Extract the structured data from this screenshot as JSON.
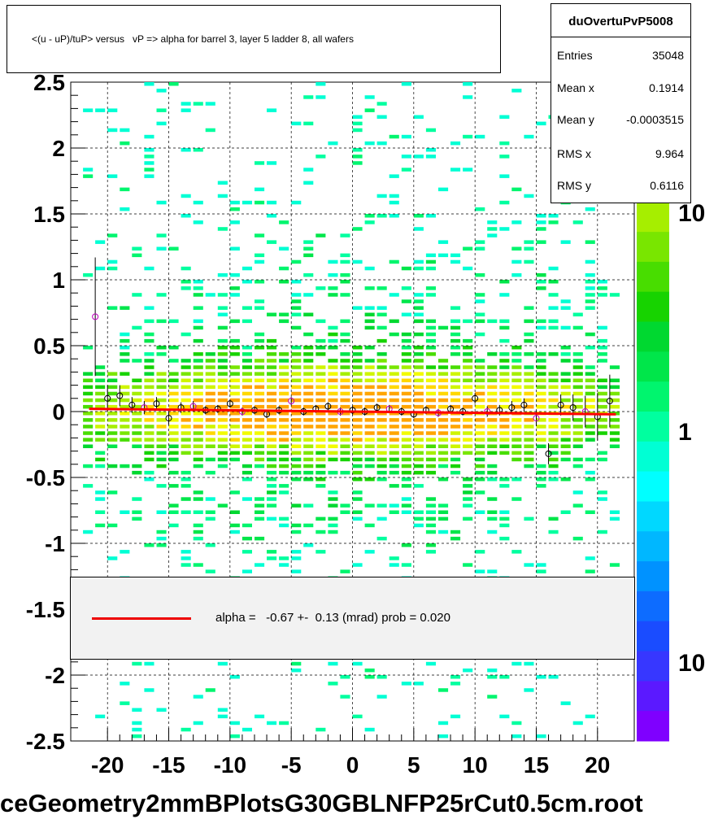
{
  "title": "<(u - uP)/tuP> versus   vP => alpha for barrel 3, layer 5 ladder 8, all wafers",
  "stats": {
    "name": "duOvertuPvP5008",
    "rows": [
      {
        "key": "Entries",
        "value": "35048"
      },
      {
        "key": "Mean x",
        "value": "0.1914"
      },
      {
        "key": "Mean y",
        "value": "-0.0003515"
      },
      {
        "key": "RMS x",
        "value": "9.964"
      },
      {
        "key": "RMS y",
        "value": "0.6116"
      }
    ]
  },
  "legend": {
    "label": "alpha =   -0.67 +-  0.13 (mrad) prob = 0.020",
    "color": "#e00000"
  },
  "footer": "ceGeometry2mmBPlotsG30GBLNFP25rCut0.5cm.root",
  "chart_data": {
    "type": "heatmap",
    "xlim": [
      -23,
      23
    ],
    "ylim": [
      -2.5,
      2.5
    ],
    "x_ticks": [
      "-20",
      "-15",
      "-10",
      "-5",
      "0",
      "5",
      "10",
      "15",
      "20"
    ],
    "y_ticks": [
      "2.5",
      "2",
      "1.5",
      "1",
      "0.5",
      "0",
      "-0.5",
      "-1",
      "-1.5",
      "-2",
      "-2.5"
    ],
    "grid": true,
    "color_scale": {
      "type": "log",
      "labels": [
        "10",
        "1",
        "10"
      ],
      "colors": [
        "#7f00ff",
        "#5b19ff",
        "#3737ff",
        "#1a4cff",
        "#0d6cff",
        "#0092ff",
        "#00b7ff",
        "#00d8ff",
        "#00ffff",
        "#00ffd4",
        "#00ff9f",
        "#00f56e",
        "#00e64a",
        "#00d830",
        "#17d300",
        "#48dd00",
        "#79e600",
        "#a6ee00",
        "#cff500",
        "#f2fb00",
        "#ffd800",
        "#ffa500"
      ]
    },
    "fit": {
      "slope": -0.00067,
      "intercept": 0.0,
      "color": "#ff0000"
    },
    "profile": {
      "x": [
        -21,
        -20,
        -19,
        -18,
        -17,
        -16,
        -15,
        -14,
        -13,
        -12,
        -11,
        -10,
        -9,
        -8,
        -7,
        -6,
        -5,
        -4,
        -3,
        -2,
        -1,
        0,
        1,
        2,
        3,
        4,
        5,
        6,
        7,
        8,
        9,
        10,
        11,
        12,
        13,
        14,
        15,
        16,
        17,
        18,
        19,
        20,
        21
      ],
      "y": [
        0.72,
        0.1,
        0.12,
        0.05,
        0.03,
        0.06,
        -0.05,
        0.03,
        0.04,
        0.01,
        0.02,
        0.06,
        0.0,
        0.01,
        -0.02,
        0.01,
        0.08,
        0.0,
        0.02,
        0.04,
        0.0,
        0.01,
        0.0,
        0.03,
        0.02,
        0.0,
        -0.02,
        0.01,
        -0.01,
        0.02,
        0.0,
        0.1,
        0.0,
        0.01,
        0.03,
        0.05,
        -0.05,
        -0.32,
        0.05,
        0.03,
        0.0,
        -0.04,
        0.08
      ],
      "err": [
        0.45,
        0.1,
        0.08,
        0.06,
        0.05,
        0.05,
        0.05,
        0.04,
        0.04,
        0.03,
        0.03,
        0.03,
        0.03,
        0.03,
        0.03,
        0.03,
        0.03,
        0.03,
        0.03,
        0.03,
        0.03,
        0.03,
        0.03,
        0.03,
        0.03,
        0.03,
        0.03,
        0.03,
        0.03,
        0.03,
        0.03,
        0.04,
        0.04,
        0.04,
        0.05,
        0.05,
        0.06,
        0.08,
        0.08,
        0.1,
        0.12,
        0.18,
        0.2
      ]
    }
  }
}
